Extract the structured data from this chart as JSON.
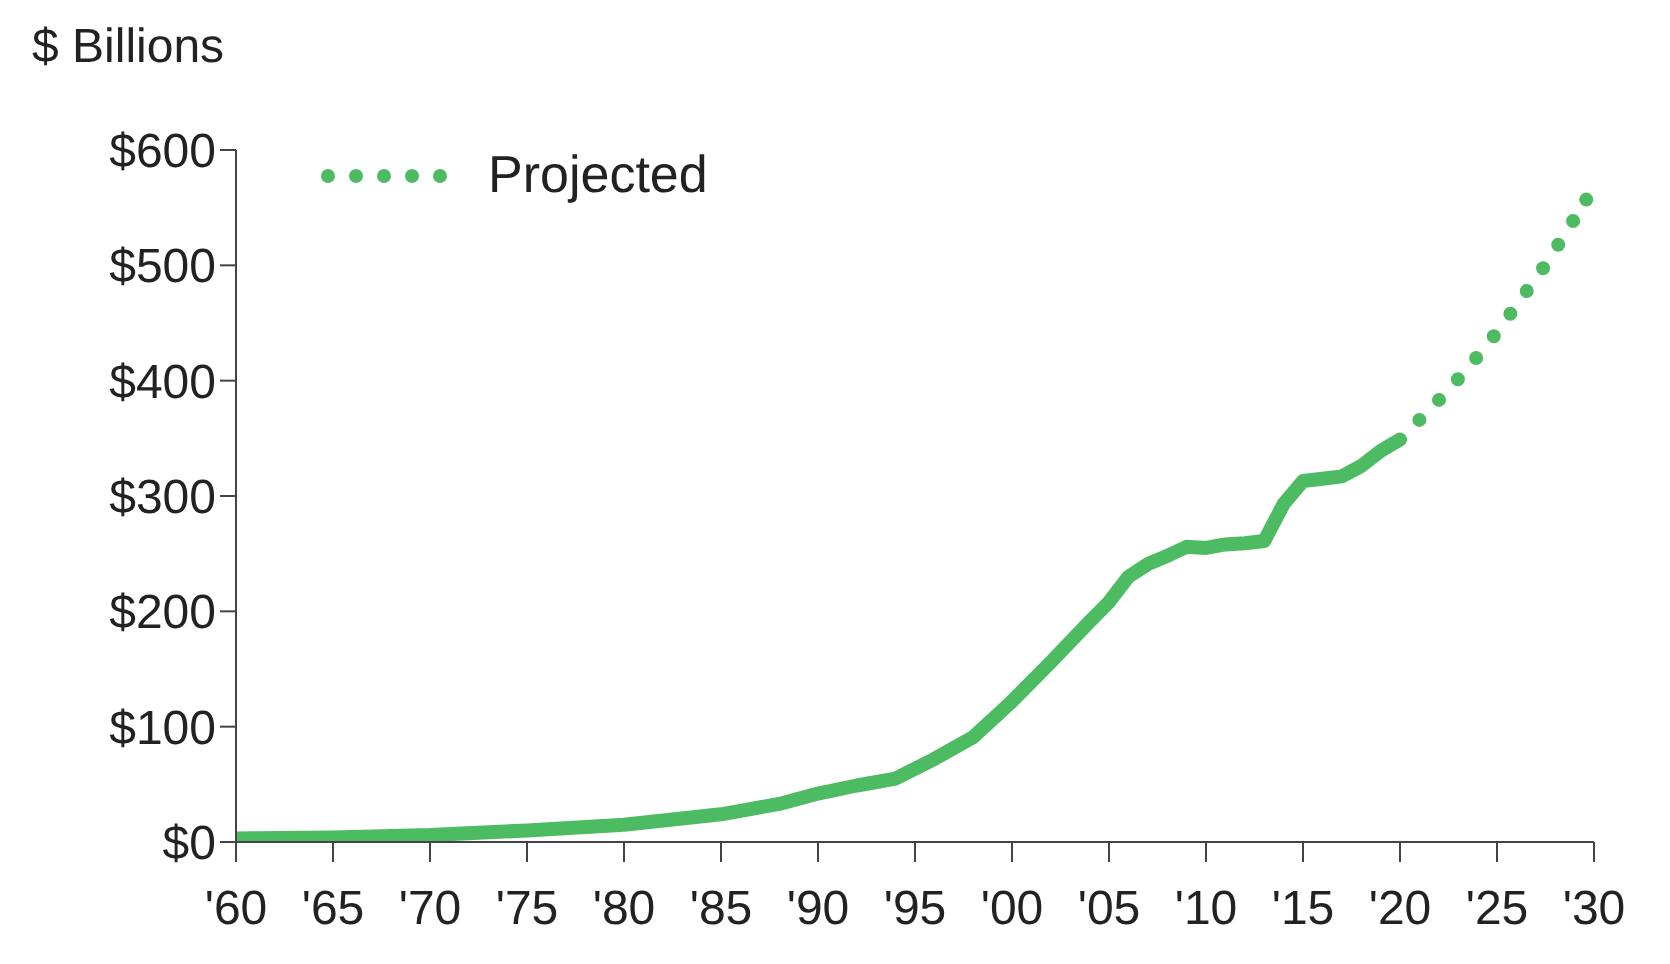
{
  "chart_data": {
    "type": "line",
    "ylabel": "$ Billions",
    "xlim": [
      1960,
      2030
    ],
    "xticks": [
      {
        "value": 1960,
        "label": "'60"
      },
      {
        "value": 1965,
        "label": "'65"
      },
      {
        "value": 1970,
        "label": "'70"
      },
      {
        "value": 1975,
        "label": "'75"
      },
      {
        "value": 1980,
        "label": "'80"
      },
      {
        "value": 1985,
        "label": "'85"
      },
      {
        "value": 1990,
        "label": "'90"
      },
      {
        "value": 1995,
        "label": "'95"
      },
      {
        "value": 2000,
        "label": "'00"
      },
      {
        "value": 2005,
        "label": "'05"
      },
      {
        "value": 2010,
        "label": "'10"
      },
      {
        "value": 2015,
        "label": "'15"
      },
      {
        "value": 2020,
        "label": "'20"
      },
      {
        "value": 2025,
        "label": "'25"
      },
      {
        "value": 2030,
        "label": "'30"
      }
    ],
    "ylim": [
      0,
      600
    ],
    "yticks": [
      {
        "value": 0,
        "label": "$0"
      },
      {
        "value": 100,
        "label": "$100"
      },
      {
        "value": 200,
        "label": "$200"
      },
      {
        "value": 300,
        "label": "$300"
      },
      {
        "value": 400,
        "label": "$400"
      },
      {
        "value": 500,
        "label": "$500"
      },
      {
        "value": 600,
        "label": "$600"
      }
    ],
    "legend": "top left",
    "series": [
      {
        "color": "#4dbb62",
        "line_style": "solid",
        "x": [
          1960,
          1965,
          1970,
          1975,
          1980,
          1985,
          1988,
          1990,
          1992,
          1994,
          1996,
          1998,
          2000,
          2002,
          2004,
          2005,
          2006,
          2007,
          2008,
          2009,
          2010,
          2011,
          2012,
          2013,
          2014,
          2015,
          2016,
          2017,
          2018,
          2019,
          2020
        ],
        "values": [
          3,
          4,
          6,
          10,
          15,
          24,
          33,
          42,
          49,
          55,
          72,
          91,
          122,
          156,
          191,
          208,
          230,
          241,
          248,
          256,
          255,
          258,
          259,
          261,
          293,
          313,
          315,
          317,
          326,
          339,
          349
        ]
      },
      {
        "name": "Projected",
        "color": "#4dbb62",
        "line_style": "dotted",
        "x": [
          2021,
          2022.4,
          2023.7,
          2025,
          2026.2,
          2027.4,
          2028.5,
          2029.6
        ],
        "values": [
          366,
          390,
          415,
          442,
          470,
          498,
          527,
          557
        ]
      }
    ]
  }
}
